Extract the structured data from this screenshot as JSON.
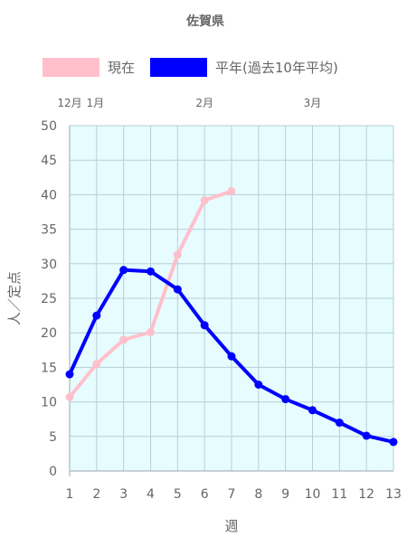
{
  "chart_data": {
    "type": "line",
    "title": "佐賀県",
    "xlabel": "週",
    "ylabel": "人／定点",
    "x": [
      1,
      2,
      3,
      4,
      5,
      6,
      7,
      8,
      9,
      10,
      11,
      12,
      13
    ],
    "xlim": [
      1,
      13
    ],
    "ylim": [
      0,
      50
    ],
    "yticks": [
      0,
      5,
      10,
      15,
      20,
      25,
      30,
      35,
      40,
      45,
      50
    ],
    "grid": true,
    "legend_position": "top",
    "plot_background": "#e6fcff",
    "month_labels": [
      {
        "label": "12月",
        "x": 1
      },
      {
        "label": "1月",
        "x": 1.95
      },
      {
        "label": "2月",
        "x": 6
      },
      {
        "label": "3月",
        "x": 10
      }
    ],
    "series": [
      {
        "name": "現在",
        "color": "#ffc0cb",
        "values": [
          10.7,
          15.5,
          19.0,
          20.1,
          31.3,
          39.2,
          40.5,
          null,
          null,
          null,
          null,
          null,
          null
        ]
      },
      {
        "name": "平年(過去10年平均)",
        "color": "#0000ff",
        "values": [
          14.0,
          22.5,
          29.1,
          28.9,
          26.3,
          21.1,
          16.6,
          12.5,
          10.4,
          8.8,
          7.0,
          5.1,
          4.2
        ]
      }
    ]
  }
}
